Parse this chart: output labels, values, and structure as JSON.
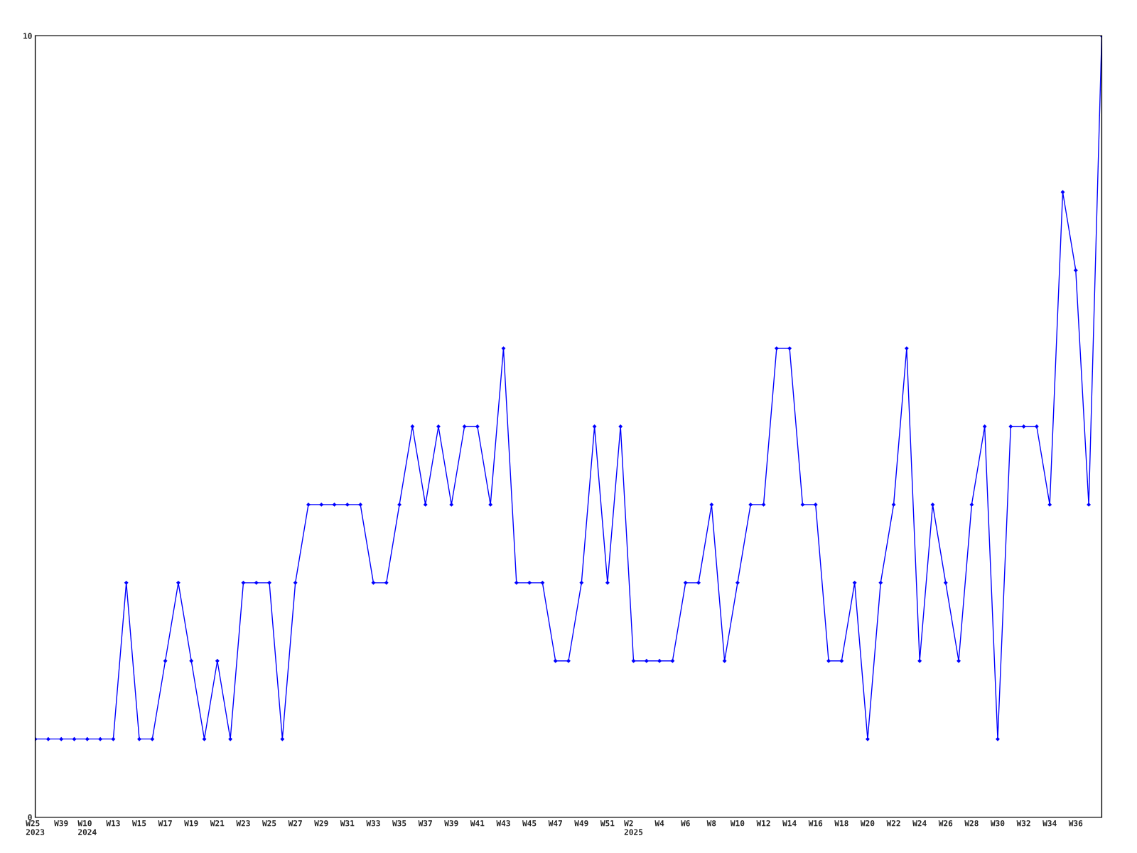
{
  "chart_data": {
    "type": "line",
    "categories": [
      "W25\n2023",
      null,
      "W39",
      null,
      "W10\n2024",
      null,
      "W13",
      null,
      "W15",
      null,
      "W17",
      null,
      "W19",
      null,
      "W21",
      null,
      "W23",
      null,
      "W25",
      null,
      "W27",
      null,
      "W29",
      null,
      "W31",
      null,
      "W33",
      null,
      "W35",
      null,
      "W37",
      null,
      "W39",
      null,
      "W41",
      null,
      "W43",
      null,
      "W45",
      null,
      "W47",
      null,
      "W49",
      null,
      "W51",
      null,
      "W2\n2025",
      null,
      "W4",
      null,
      "W6",
      null,
      "W8",
      null,
      "W10",
      null,
      "W12",
      null,
      "W14",
      null,
      "W16",
      null,
      "W18",
      null,
      "W20",
      null,
      "W22",
      null,
      "W24",
      null,
      "W26",
      null,
      "W28",
      null,
      "W30",
      null,
      "W32",
      null,
      "W34",
      null,
      "W36",
      null,
      null
    ],
    "series": [
      {
        "color": "#0000ff",
        "values": [
          1,
          1,
          1,
          1,
          1,
          1,
          1,
          3,
          1,
          1,
          2,
          3,
          2,
          1,
          2,
          1,
          3,
          3,
          3,
          1,
          3,
          4,
          4,
          4,
          4,
          4,
          3,
          3,
          4,
          5,
          4,
          5,
          4,
          5,
          5,
          4,
          6,
          3,
          3,
          3,
          2,
          2,
          3,
          5,
          3,
          5,
          2,
          2,
          2,
          2,
          3,
          3,
          4,
          2,
          3,
          4,
          4,
          6,
          6,
          4,
          4,
          2,
          2,
          3,
          1,
          3,
          4,
          6,
          2,
          4,
          3,
          2,
          4,
          5,
          1,
          5,
          5,
          5,
          4,
          8,
          7,
          4,
          10
        ]
      }
    ],
    "ylim": [
      0,
      10
    ],
    "yticks": [
      0,
      10
    ],
    "grid": false,
    "marker": "diamond",
    "line_style": "solid"
  }
}
